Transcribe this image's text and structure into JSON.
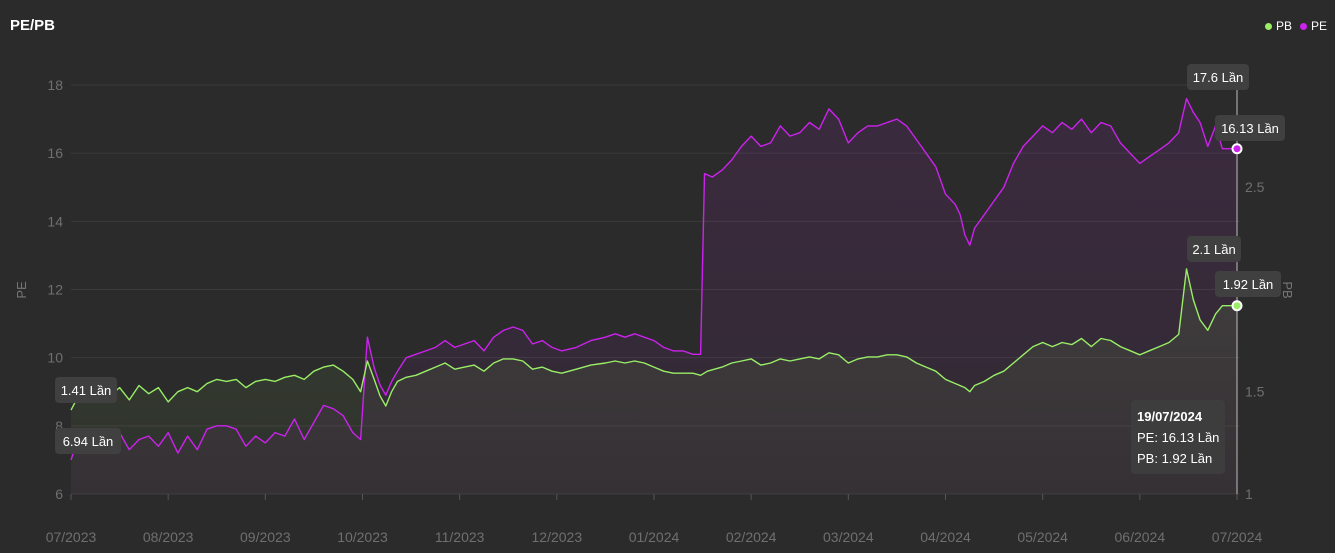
{
  "title": "PE/PB",
  "legend": [
    {
      "name": "PB",
      "color": "#99ee66"
    },
    {
      "name": "PE",
      "color": "#cc22ee"
    }
  ],
  "tooltip": {
    "date": "19/07/2024",
    "pe_line": "PE: 16.13 Lần",
    "pb_line": "PB: 1.92 Lần"
  },
  "chart_data": {
    "type": "line",
    "title": "PE/PB",
    "x_tick_labels": [
      "07/2023",
      "08/2023",
      "09/2023",
      "10/2023",
      "11/2023",
      "12/2023",
      "01/2024",
      "02/2024",
      "03/2024",
      "04/2024",
      "05/2024",
      "06/2024",
      "07/2024"
    ],
    "y_left": {
      "label": "PE",
      "range": [
        6,
        19
      ],
      "ticks": [
        "6",
        "8",
        "10",
        "12",
        "14",
        "16",
        "18"
      ]
    },
    "y_right": {
      "label": "PB",
      "range": [
        1,
        2.9
      ],
      "ticks": [
        "1",
        "1.5",
        "2.5"
      ]
    },
    "grid": true,
    "legend_position": "top-right",
    "series": [
      {
        "name": "PE",
        "axis": "left",
        "color": "#cc22ee",
        "points": [
          [
            0,
            7.0
          ],
          [
            0.08,
            7.7
          ],
          [
            0.15,
            7.6
          ],
          [
            0.2,
            7.3
          ],
          [
            0.3,
            7.7
          ],
          [
            0.4,
            7.2
          ],
          [
            0.5,
            7.8
          ],
          [
            0.6,
            7.3
          ],
          [
            0.7,
            7.6
          ],
          [
            0.8,
            7.7
          ],
          [
            0.9,
            7.4
          ],
          [
            1.0,
            7.8
          ],
          [
            1.1,
            7.2
          ],
          [
            1.2,
            7.7
          ],
          [
            1.3,
            7.3
          ],
          [
            1.4,
            7.9
          ],
          [
            1.5,
            8.0
          ],
          [
            1.6,
            8.0
          ],
          [
            1.7,
            7.9
          ],
          [
            1.8,
            7.4
          ],
          [
            1.9,
            7.7
          ],
          [
            2.0,
            7.5
          ],
          [
            2.1,
            7.8
          ],
          [
            2.2,
            7.7
          ],
          [
            2.3,
            8.2
          ],
          [
            2.4,
            7.6
          ],
          [
            2.5,
            8.1
          ],
          [
            2.6,
            8.6
          ],
          [
            2.7,
            8.5
          ],
          [
            2.8,
            8.3
          ],
          [
            2.9,
            7.8
          ],
          [
            2.98,
            7.6
          ],
          [
            3.05,
            10.6
          ],
          [
            3.12,
            9.7
          ],
          [
            3.18,
            9.2
          ],
          [
            3.24,
            8.9
          ],
          [
            3.3,
            9.3
          ],
          [
            3.36,
            9.6
          ],
          [
            3.45,
            10.0
          ],
          [
            3.55,
            10.1
          ],
          [
            3.65,
            10.2
          ],
          [
            3.75,
            10.3
          ],
          [
            3.85,
            10.5
          ],
          [
            3.95,
            10.3
          ],
          [
            4.05,
            10.4
          ],
          [
            4.15,
            10.5
          ],
          [
            4.25,
            10.2
          ],
          [
            4.35,
            10.6
          ],
          [
            4.45,
            10.8
          ],
          [
            4.55,
            10.9
          ],
          [
            4.65,
            10.8
          ],
          [
            4.75,
            10.4
          ],
          [
            4.85,
            10.5
          ],
          [
            4.95,
            10.3
          ],
          [
            5.05,
            10.2
          ],
          [
            5.2,
            10.3
          ],
          [
            5.35,
            10.5
          ],
          [
            5.5,
            10.6
          ],
          [
            5.6,
            10.7
          ],
          [
            5.7,
            10.6
          ],
          [
            5.8,
            10.7
          ],
          [
            5.9,
            10.6
          ],
          [
            6.0,
            10.5
          ],
          [
            6.1,
            10.3
          ],
          [
            6.2,
            10.2
          ],
          [
            6.3,
            10.2
          ],
          [
            6.4,
            10.1
          ],
          [
            6.48,
            10.1
          ],
          [
            6.52,
            15.4
          ],
          [
            6.6,
            15.3
          ],
          [
            6.7,
            15.5
          ],
          [
            6.8,
            15.8
          ],
          [
            6.9,
            16.2
          ],
          [
            7.0,
            16.5
          ],
          [
            7.1,
            16.2
          ],
          [
            7.2,
            16.3
          ],
          [
            7.3,
            16.8
          ],
          [
            7.4,
            16.5
          ],
          [
            7.5,
            16.6
          ],
          [
            7.6,
            16.9
          ],
          [
            7.7,
            16.7
          ],
          [
            7.8,
            17.3
          ],
          [
            7.9,
            17.0
          ],
          [
            8.0,
            16.3
          ],
          [
            8.1,
            16.6
          ],
          [
            8.2,
            16.8
          ],
          [
            8.3,
            16.8
          ],
          [
            8.4,
            16.9
          ],
          [
            8.5,
            17.0
          ],
          [
            8.6,
            16.8
          ],
          [
            8.7,
            16.4
          ],
          [
            8.8,
            16.0
          ],
          [
            8.9,
            15.6
          ],
          [
            9.0,
            14.8
          ],
          [
            9.1,
            14.5
          ],
          [
            9.15,
            14.2
          ],
          [
            9.2,
            13.6
          ],
          [
            9.25,
            13.3
          ],
          [
            9.3,
            13.8
          ],
          [
            9.4,
            14.2
          ],
          [
            9.5,
            14.6
          ],
          [
            9.6,
            15.0
          ],
          [
            9.7,
            15.7
          ],
          [
            9.8,
            16.2
          ],
          [
            9.9,
            16.5
          ],
          [
            10.0,
            16.8
          ],
          [
            10.1,
            16.6
          ],
          [
            10.2,
            16.9
          ],
          [
            10.3,
            16.7
          ],
          [
            10.4,
            17.0
          ],
          [
            10.5,
            16.6
          ],
          [
            10.6,
            16.9
          ],
          [
            10.7,
            16.8
          ],
          [
            10.8,
            16.3
          ],
          [
            10.9,
            16.0
          ],
          [
            11.0,
            15.7
          ],
          [
            11.1,
            15.9
          ],
          [
            11.2,
            16.1
          ],
          [
            11.3,
            16.3
          ],
          [
            11.4,
            16.6
          ],
          [
            11.48,
            17.6
          ],
          [
            11.55,
            17.2
          ],
          [
            11.62,
            16.9
          ],
          [
            11.7,
            16.2
          ],
          [
            11.78,
            16.8
          ],
          [
            11.85,
            16.13
          ],
          [
            12.0,
            16.13
          ]
        ]
      },
      {
        "name": "PB",
        "axis": "right",
        "color": "#99ee66",
        "points": [
          [
            0,
            1.41
          ],
          [
            0.1,
            1.5
          ],
          [
            0.2,
            1.48
          ],
          [
            0.3,
            1.52
          ],
          [
            0.4,
            1.48
          ],
          [
            0.5,
            1.52
          ],
          [
            0.6,
            1.46
          ],
          [
            0.7,
            1.53
          ],
          [
            0.8,
            1.49
          ],
          [
            0.9,
            1.52
          ],
          [
            1.0,
            1.45
          ],
          [
            1.1,
            1.5
          ],
          [
            1.2,
            1.52
          ],
          [
            1.3,
            1.5
          ],
          [
            1.4,
            1.54
          ],
          [
            1.5,
            1.56
          ],
          [
            1.6,
            1.55
          ],
          [
            1.7,
            1.56
          ],
          [
            1.8,
            1.52
          ],
          [
            1.9,
            1.55
          ],
          [
            2.0,
            1.56
          ],
          [
            2.1,
            1.55
          ],
          [
            2.2,
            1.57
          ],
          [
            2.3,
            1.58
          ],
          [
            2.4,
            1.56
          ],
          [
            2.5,
            1.6
          ],
          [
            2.6,
            1.62
          ],
          [
            2.7,
            1.63
          ],
          [
            2.8,
            1.6
          ],
          [
            2.9,
            1.56
          ],
          [
            2.98,
            1.5
          ],
          [
            3.05,
            1.65
          ],
          [
            3.12,
            1.56
          ],
          [
            3.18,
            1.48
          ],
          [
            3.24,
            1.43
          ],
          [
            3.3,
            1.5
          ],
          [
            3.36,
            1.55
          ],
          [
            3.45,
            1.57
          ],
          [
            3.55,
            1.58
          ],
          [
            3.65,
            1.6
          ],
          [
            3.75,
            1.62
          ],
          [
            3.85,
            1.64
          ],
          [
            3.95,
            1.61
          ],
          [
            4.05,
            1.62
          ],
          [
            4.15,
            1.63
          ],
          [
            4.25,
            1.6
          ],
          [
            4.35,
            1.64
          ],
          [
            4.45,
            1.66
          ],
          [
            4.55,
            1.66
          ],
          [
            4.65,
            1.65
          ],
          [
            4.75,
            1.61
          ],
          [
            4.85,
            1.62
          ],
          [
            4.95,
            1.6
          ],
          [
            5.05,
            1.59
          ],
          [
            5.2,
            1.61
          ],
          [
            5.35,
            1.63
          ],
          [
            5.5,
            1.64
          ],
          [
            5.6,
            1.65
          ],
          [
            5.7,
            1.64
          ],
          [
            5.8,
            1.65
          ],
          [
            5.9,
            1.64
          ],
          [
            6.0,
            1.62
          ],
          [
            6.1,
            1.6
          ],
          [
            6.2,
            1.59
          ],
          [
            6.3,
            1.59
          ],
          [
            6.4,
            1.59
          ],
          [
            6.48,
            1.58
          ],
          [
            6.55,
            1.6
          ],
          [
            6.7,
            1.62
          ],
          [
            6.8,
            1.64
          ],
          [
            6.9,
            1.65
          ],
          [
            7.0,
            1.66
          ],
          [
            7.1,
            1.63
          ],
          [
            7.2,
            1.64
          ],
          [
            7.3,
            1.66
          ],
          [
            7.4,
            1.65
          ],
          [
            7.5,
            1.66
          ],
          [
            7.6,
            1.67
          ],
          [
            7.7,
            1.66
          ],
          [
            7.8,
            1.69
          ],
          [
            7.9,
            1.68
          ],
          [
            8.0,
            1.64
          ],
          [
            8.1,
            1.66
          ],
          [
            8.2,
            1.67
          ],
          [
            8.3,
            1.67
          ],
          [
            8.4,
            1.68
          ],
          [
            8.5,
            1.68
          ],
          [
            8.6,
            1.67
          ],
          [
            8.7,
            1.64
          ],
          [
            8.8,
            1.62
          ],
          [
            8.9,
            1.6
          ],
          [
            9.0,
            1.56
          ],
          [
            9.1,
            1.54
          ],
          [
            9.2,
            1.52
          ],
          [
            9.25,
            1.5
          ],
          [
            9.3,
            1.53
          ],
          [
            9.4,
            1.55
          ],
          [
            9.5,
            1.58
          ],
          [
            9.6,
            1.6
          ],
          [
            9.7,
            1.64
          ],
          [
            9.8,
            1.68
          ],
          [
            9.9,
            1.72
          ],
          [
            10.0,
            1.74
          ],
          [
            10.1,
            1.72
          ],
          [
            10.2,
            1.74
          ],
          [
            10.3,
            1.73
          ],
          [
            10.4,
            1.76
          ],
          [
            10.5,
            1.72
          ],
          [
            10.6,
            1.76
          ],
          [
            10.7,
            1.75
          ],
          [
            10.8,
            1.72
          ],
          [
            10.9,
            1.7
          ],
          [
            11.0,
            1.68
          ],
          [
            11.1,
            1.7
          ],
          [
            11.2,
            1.72
          ],
          [
            11.3,
            1.74
          ],
          [
            11.4,
            1.78
          ],
          [
            11.48,
            2.1
          ],
          [
            11.55,
            1.95
          ],
          [
            11.62,
            1.85
          ],
          [
            11.7,
            1.8
          ],
          [
            11.78,
            1.88
          ],
          [
            11.85,
            1.92
          ],
          [
            12.0,
            1.92
          ]
        ]
      }
    ],
    "annotations": [
      {
        "series": "PE",
        "text": "17.6 Lần",
        "x": 11.48,
        "value": 17.6
      },
      {
        "series": "PE",
        "text": "16.13 Lần",
        "x": 12.0,
        "value": 16.13
      },
      {
        "series": "PE",
        "text": "6.94 Lần",
        "x": 0,
        "value": 6.94
      },
      {
        "series": "PB",
        "text": "2.1 Lần",
        "x": 11.48,
        "value": 2.1
      },
      {
        "series": "PB",
        "text": "1.92 Lần",
        "x": 12.0,
        "value": 1.92
      },
      {
        "series": "PB",
        "text": "1.41 Lần",
        "x": 0,
        "value": 1.41
      }
    ]
  }
}
